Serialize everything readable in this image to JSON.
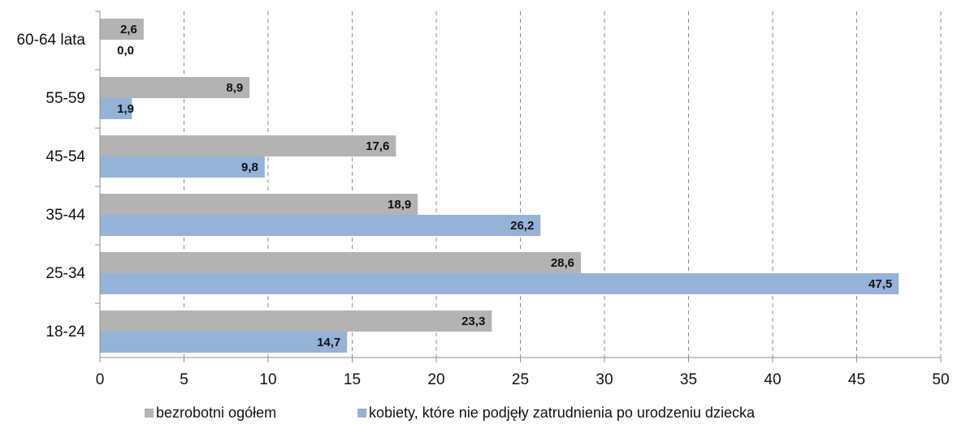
{
  "chart_data": {
    "type": "bar",
    "orientation": "horizontal",
    "categories": [
      "60-64 lata",
      "55-59",
      "45-54",
      "35-44",
      "25-34",
      "18-24"
    ],
    "series": [
      {
        "name": "bezrobotni ogółem",
        "color": "#b3b3b3",
        "values": [
          2.6,
          8.9,
          17.6,
          18.9,
          28.6,
          23.3
        ],
        "labels": [
          "2,6",
          "8,9",
          "17,6",
          "18,9",
          "28,6",
          "23,3"
        ]
      },
      {
        "name": "kobiety, które nie podjęły zatrudnienia po urodzeniu dziecka",
        "color": "#95b3d7",
        "values": [
          0.0,
          1.9,
          9.8,
          26.2,
          47.5,
          14.7
        ],
        "labels": [
          "0,0",
          "1,9",
          "9,8",
          "26,2",
          "47,5",
          "14,7"
        ]
      }
    ],
    "xlim": [
      0,
      50
    ],
    "xticks": [
      "0",
      "5",
      "10",
      "15",
      "20",
      "25",
      "30",
      "35",
      "40",
      "45",
      "50"
    ],
    "grid": "vertical dashed",
    "legend_position": "bottom"
  }
}
